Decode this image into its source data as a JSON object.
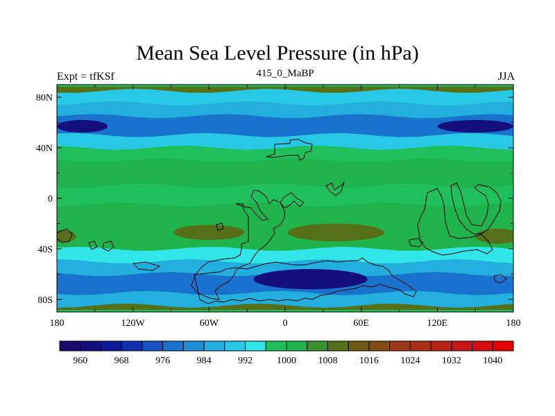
{
  "title": "Mean Sea Level Pressure (in hPa)",
  "left_label": "Expt = tfKSf",
  "center_label": "415_0_MaBP",
  "right_label": "JJA",
  "axes": {
    "lat_labels": [
      "80N",
      "40N",
      "0",
      "40S",
      "80S"
    ],
    "lon_labels": [
      "180",
      "120W",
      "60W",
      "0",
      "60E",
      "120E",
      "180"
    ]
  },
  "colorbar": {
    "labels": [
      "960",
      "968",
      "976",
      "984",
      "992",
      "1000",
      "1008",
      "1016",
      "1024",
      "1032",
      "1040"
    ],
    "colors": [
      "#1a0a6b",
      "#150f7e",
      "#0d1a9a",
      "#0f2fb0",
      "#1552c4",
      "#1a72cf",
      "#1f8fd8",
      "#23aee0",
      "#27c9e6",
      "#30e6e8",
      "#1fc05b",
      "#20b34b",
      "#3a8f2d",
      "#566f19",
      "#6e5a16",
      "#7f4a14",
      "#9b3a14",
      "#a82e14",
      "#b82214",
      "#c71616",
      "#d40e0e",
      "#e60000"
    ]
  },
  "chart_data": {
    "type": "heatmap",
    "title": "Mean Sea Level Pressure (in hPa)",
    "subtitle": "415_0_MaBP",
    "experiment": "Expt = tfKSf",
    "season": "JJA",
    "x_range": [
      -180,
      180
    ],
    "y_range": [
      -90,
      90
    ],
    "x_ticks": [
      "180",
      "120W",
      "60W",
      "0",
      "60E",
      "120E",
      "180"
    ],
    "y_ticks": [
      "80N",
      "40N",
      "0",
      "40S",
      "80S"
    ],
    "levels": [
      960,
      968,
      976,
      984,
      992,
      1000,
      1008,
      1016,
      1024,
      1032,
      1040
    ],
    "bands": [
      {
        "lat_from": 90,
        "lat_to": 85,
        "value": 1008
      },
      {
        "lat_from": 85,
        "lat_to": 75,
        "value": 988
      },
      {
        "lat_from": 75,
        "lat_to": 65,
        "value": 984
      },
      {
        "lat_from": 65,
        "lat_to": 50,
        "value": 976
      },
      {
        "lat_from": 50,
        "lat_to": 40,
        "value": 988
      },
      {
        "lat_from": 40,
        "lat_to": 30,
        "value": 996
      },
      {
        "lat_from": 30,
        "lat_to": 10,
        "value": 1002
      },
      {
        "lat_from": 10,
        "lat_to": -5,
        "value": 996
      },
      {
        "lat_from": -5,
        "lat_to": -20,
        "value": 1002
      },
      {
        "lat_from": -20,
        "lat_to": -40,
        "value": 1000
      },
      {
        "lat_from": -40,
        "lat_to": -50,
        "value": 992
      },
      {
        "lat_from": -50,
        "lat_to": -60,
        "value": 984
      },
      {
        "lat_from": -60,
        "lat_to": -75,
        "value": 976
      },
      {
        "lat_from": -75,
        "lat_to": -85,
        "value": 984
      },
      {
        "lat_from": -85,
        "lat_to": -90,
        "value": 1008
      }
    ],
    "features": [
      {
        "name": "low-north-west",
        "lon_center": -160,
        "lat_center": 57,
        "lon_radius": 20,
        "lat_radius": 5,
        "value": 960
      },
      {
        "name": "low-north-east",
        "lon_center": 150,
        "lat_center": 57,
        "lon_radius": 30,
        "lat_radius": 5,
        "value": 960
      },
      {
        "name": "high-south-pacific-west",
        "lon_center": -175,
        "lat_center": -30,
        "lon_radius": 10,
        "lat_radius": 5,
        "value": 1008
      },
      {
        "name": "high-south-pacific",
        "lon_center": -60,
        "lat_center": -27,
        "lon_radius": 28,
        "lat_radius": 6,
        "value": 1008
      },
      {
        "name": "high-south-atlantic",
        "lon_center": 40,
        "lat_center": -27,
        "lon_radius": 38,
        "lat_radius": 7,
        "value": 1008
      },
      {
        "name": "high-south-east",
        "lon_center": 168,
        "lat_center": -30,
        "lon_radius": 18,
        "lat_radius": 6,
        "value": 1008
      },
      {
        "name": "low-south",
        "lon_center": 20,
        "lat_center": -64,
        "lon_radius": 45,
        "lat_radius": 8,
        "value": 960
      }
    ]
  }
}
